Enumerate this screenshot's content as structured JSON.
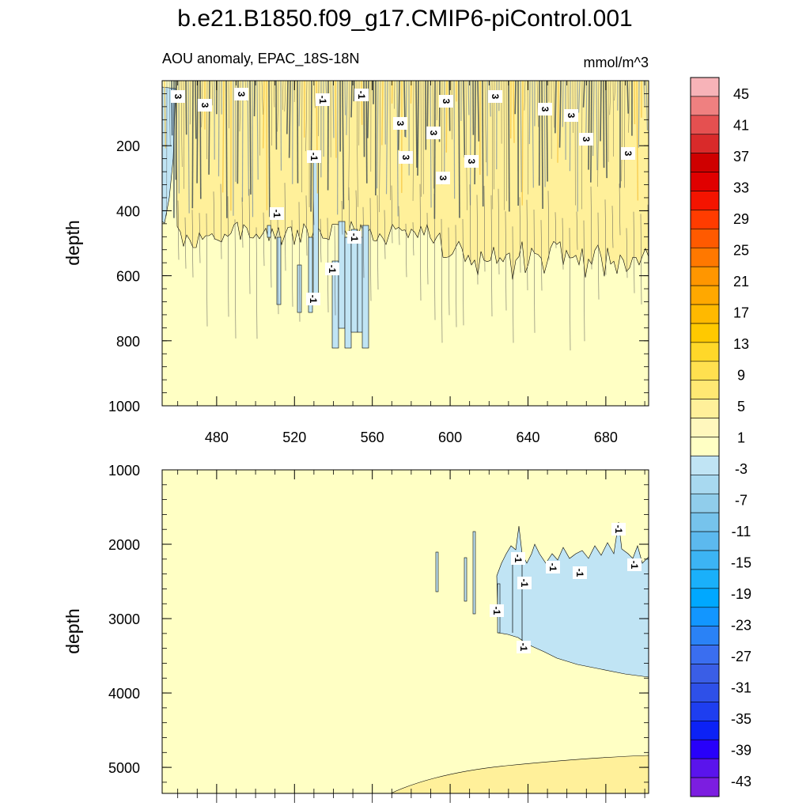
{
  "figure": {
    "title": "b.e21.B1850.f09_g17.CMIP6-piControl.001",
    "field_label": "AOU anomaly, EPAC_18S-18N",
    "units": "mmol/m^3"
  },
  "colorbar": {
    "labels": [
      "45",
      "41",
      "37",
      "33",
      "29",
      "25",
      "21",
      "17",
      "13",
      "9",
      "5",
      "1",
      "-3",
      "-7",
      "-11",
      "-15",
      "-19",
      "-23",
      "-27",
      "-31",
      "-35",
      "-39",
      "-43"
    ],
    "colors": [
      "#f7b3b8",
      "#ef8080",
      "#e55050",
      "#d92a2a",
      "#cf0000",
      "#e00000",
      "#f41400",
      "#ff3c00",
      "#ff5a00",
      "#ff7800",
      "#ff9600",
      "#ffa800",
      "#ffb900",
      "#ffc900",
      "#ffd829",
      "#ffe04f",
      "#ffe873",
      "#fff09a",
      "#fff7bd",
      "#ffffc4",
      "#c0e4f4",
      "#a8d9f0",
      "#90cdeb",
      "#76c3ec",
      "#5cb9ee",
      "#3cb4f4",
      "#1ab0fa",
      "#00a8ff",
      "#1296ff",
      "#2a82f6",
      "#3a6ef0",
      "#3a5ee6",
      "#2e50e8",
      "#1e3ef0",
      "#0c22f6",
      "#2800fa",
      "#5a14ec",
      "#7c1ee0"
    ]
  },
  "chart_data": [
    {
      "type": "contour",
      "panel": "upper",
      "ylabel": "depth",
      "ylim": [
        0,
        1000
      ],
      "y_inverted": true,
      "yticks": [
        "200",
        "400",
        "600",
        "800",
        "1000"
      ],
      "xlim": [
        452,
        702
      ],
      "xticks": [
        "480",
        "520",
        "560",
        "600",
        "640",
        "680"
      ],
      "contour_labels": [
        "3",
        "3",
        "3",
        "-1",
        "-1",
        "3",
        "3",
        "3",
        "3",
        "3",
        "-1",
        "3",
        "3",
        "3",
        "3",
        "3",
        "3",
        "-1",
        "-1",
        "-1",
        "-1"
      ],
      "description_levels": {
        "dominant": "1",
        "near_surface_positive": "3",
        "negative_patches": "-1"
      }
    },
    {
      "type": "contour",
      "panel": "lower",
      "ylabel": "depth",
      "ylim": [
        1000,
        5350
      ],
      "y_inverted": true,
      "yticks": [
        "1000",
        "2000",
        "3000",
        "4000",
        "5000"
      ],
      "xlim": [
        452,
        702
      ],
      "xticks": [],
      "contour_labels": [
        "-1",
        "-1",
        "-1",
        "-1",
        "-1",
        "-1",
        "-1",
        "-1"
      ],
      "description_levels": {
        "dominant": "1",
        "deep_negative_region": "-1",
        "abyssal_positive": "3"
      }
    }
  ]
}
